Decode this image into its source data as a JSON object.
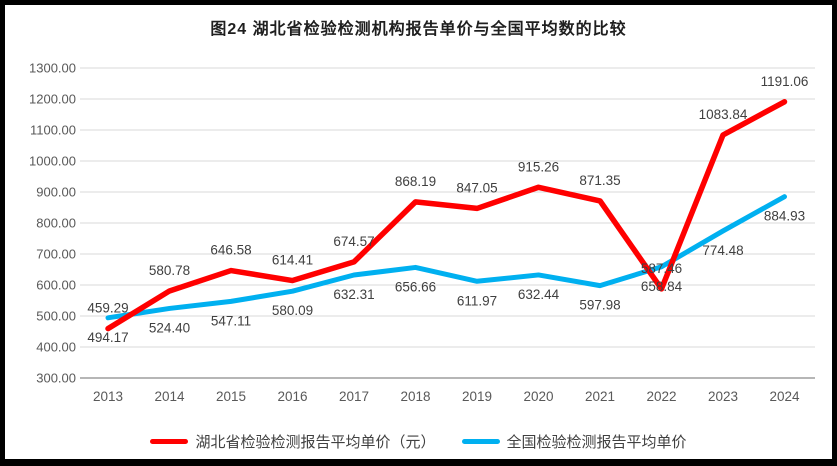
{
  "title": "图24 湖北省检验检测机构报告单价与全国平均数的比较",
  "chart_data": {
    "type": "line",
    "title": "图24 湖北省检验检测机构报告单价与全国平均数的比较",
    "categories": [
      "2013",
      "2014",
      "2015",
      "2016",
      "2017",
      "2018",
      "2019",
      "2020",
      "2021",
      "2022",
      "2023",
      "2024"
    ],
    "series": [
      {
        "name": "湖北省检验检测报告平均单价（元）",
        "color": "#FF0000",
        "label_position": "above",
        "values": [
          459.29,
          580.78,
          646.58,
          614.41,
          674.57,
          868.19,
          847.05,
          915.26,
          871.35,
          587.46,
          1083.84,
          1191.06
        ],
        "labels": [
          "459.29",
          "580.78",
          "646.58",
          "614.41",
          "674.57",
          "868.19",
          "847.05",
          "915.26",
          "871.35",
          "587.46",
          "1083.84",
          "1191.06"
        ]
      },
      {
        "name": "全国检验检测报告平均单价",
        "color": "#00B0F0",
        "label_position": "below",
        "values": [
          494.17,
          524.4,
          547.11,
          580.09,
          632.31,
          656.66,
          611.97,
          632.44,
          597.98,
          658.84,
          774.48,
          884.93
        ],
        "labels": [
          "494.17",
          "524.40",
          "547.11",
          "580.09",
          "632.31",
          "656.66",
          "611.97",
          "632.44",
          "597.98",
          "658.84",
          "774.48",
          "884.93"
        ]
      }
    ],
    "ylim": [
      300,
      1300
    ],
    "ytick_step": 100,
    "ytick_labels": [
      "300.00",
      "400.00",
      "500.00",
      "600.00",
      "700.00",
      "800.00",
      "900.00",
      "1000.00",
      "1100.00",
      "1200.00",
      "1300.00"
    ],
    "grid": true,
    "legend_position": "bottom",
    "colors": {
      "gridline": "#d9d9d9",
      "axis_line": "#9e9e9e",
      "tick_text": "#595959",
      "data_label_text": "#404040"
    }
  }
}
